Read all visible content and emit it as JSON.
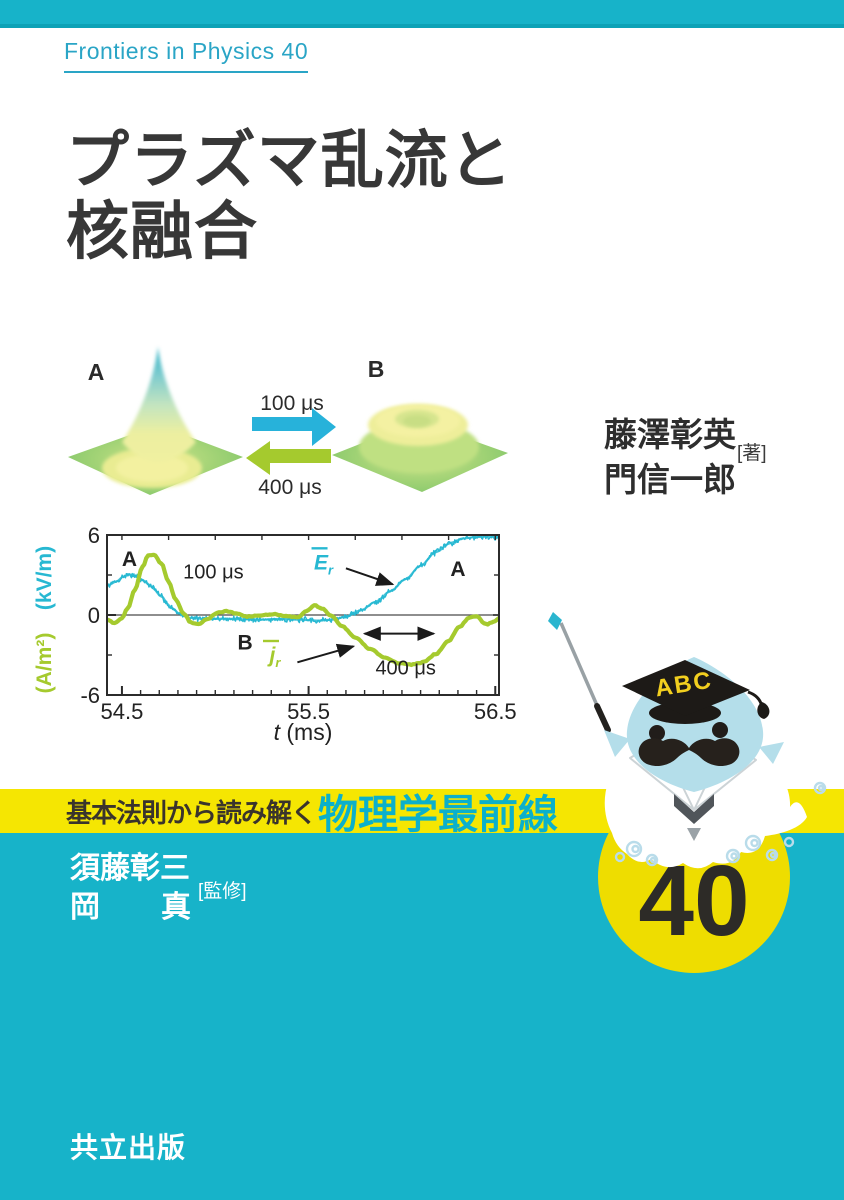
{
  "cover": {
    "series_label": "Frontiers in Physics 40",
    "title_line1": "プラズマ乱流と",
    "title_line2": "核融合",
    "authors": {
      "name1": "藤澤彰英",
      "name2": "門信一郎",
      "role": "[著]"
    },
    "figure3d": {
      "label_a": "A",
      "label_b": "B",
      "forward_label": "100 μs",
      "backward_label": "400 μs"
    },
    "mascot": {
      "cap_text": "ABC"
    },
    "banner": {
      "prefix": "基本法則から読み解く",
      "series_name": "物理学最前線"
    },
    "supervisors": {
      "name1": "須藤彰三",
      "name2_first": "岡",
      "name2_last": "真",
      "role": "[監修]"
    },
    "volume_number": "40",
    "publisher": "共立出版",
    "colors": {
      "cyan": "#17b3c9",
      "cyan_dark": "#0da2b6",
      "banner_yellow": "#f5e602",
      "badge_yellow": "#eedd00",
      "banner_series_cyan": "#0bb0cb",
      "series_label_cyan": "#2aa5c6",
      "chart_cyan": "#27b8d2",
      "chart_green": "#a5ca2e",
      "title_dark": "#373737"
    }
  },
  "chart_data": {
    "type": "line",
    "title": "",
    "xlabel_italic": "t",
    "xlabel_rest": " (ms)",
    "ylabel_top": "(kV/m)",
    "ylabel_bottom": "(A/m²)",
    "xlim": [
      54.42,
      56.52
    ],
    "ylim": [
      -6,
      6
    ],
    "xticks": [
      54.5,
      55.5,
      56.5
    ],
    "yticks": [
      6,
      0,
      -6
    ],
    "yticks_minor": [
      3,
      -3
    ],
    "grid": false,
    "legend_position": "none",
    "series": [
      {
        "name": "Er (radial electric field, kV/m)",
        "color": "#27b8d2",
        "render": "noisy",
        "noise": 0.27,
        "points": [
          [
            54.42,
            2.2
          ],
          [
            54.47,
            2.5
          ],
          [
            54.51,
            2.9
          ],
          [
            54.54,
            3.05
          ],
          [
            54.58,
            2.85
          ],
          [
            54.62,
            2.55
          ],
          [
            54.66,
            2.1
          ],
          [
            54.71,
            1.4
          ],
          [
            54.76,
            0.6
          ],
          [
            54.81,
            0.1
          ],
          [
            54.86,
            -0.2
          ],
          [
            54.95,
            -0.3
          ],
          [
            55.05,
            -0.28
          ],
          [
            55.15,
            -0.32
          ],
          [
            55.25,
            -0.35
          ],
          [
            55.35,
            -0.3
          ],
          [
            55.45,
            -0.35
          ],
          [
            55.55,
            -0.42
          ],
          [
            55.63,
            -0.35
          ],
          [
            55.7,
            -0.12
          ],
          [
            55.78,
            0.35
          ],
          [
            55.86,
            1.0
          ],
          [
            55.94,
            1.8
          ],
          [
            56.02,
            2.7
          ],
          [
            56.1,
            3.7
          ],
          [
            56.18,
            4.7
          ],
          [
            56.26,
            5.4
          ],
          [
            56.33,
            5.75
          ],
          [
            56.4,
            5.85
          ],
          [
            56.47,
            5.9
          ],
          [
            56.52,
            5.85
          ]
        ]
      },
      {
        "name": "jr (radial current, A/m²)",
        "color": "#a5ca2e",
        "render": "smooth",
        "noise": 0.05,
        "points": [
          [
            54.42,
            -0.35
          ],
          [
            54.46,
            -0.6
          ],
          [
            54.5,
            -0.25
          ],
          [
            54.53,
            0.5
          ],
          [
            54.57,
            1.9
          ],
          [
            54.61,
            3.6
          ],
          [
            54.64,
            4.45
          ],
          [
            54.67,
            4.55
          ],
          [
            54.71,
            3.9
          ],
          [
            54.75,
            2.5
          ],
          [
            54.79,
            1.1
          ],
          [
            54.83,
            0.1
          ],
          [
            54.87,
            -0.55
          ],
          [
            54.91,
            -0.68
          ],
          [
            54.96,
            -0.3
          ],
          [
            55.01,
            0.18
          ],
          [
            55.06,
            0.3
          ],
          [
            55.11,
            0.12
          ],
          [
            55.17,
            -0.1
          ],
          [
            55.24,
            -0.03
          ],
          [
            55.31,
            0.05
          ],
          [
            55.38,
            -0.08
          ],
          [
            55.44,
            -0.15
          ],
          [
            55.49,
            0.3
          ],
          [
            55.53,
            0.72
          ],
          [
            55.57,
            0.5
          ],
          [
            55.62,
            -0.05
          ],
          [
            55.68,
            -0.85
          ],
          [
            55.75,
            -1.7
          ],
          [
            55.83,
            -2.55
          ],
          [
            55.91,
            -3.2
          ],
          [
            55.98,
            -3.6
          ],
          [
            56.05,
            -3.72
          ],
          [
            56.11,
            -3.55
          ],
          [
            56.18,
            -2.95
          ],
          [
            56.25,
            -1.95
          ],
          [
            56.31,
            -0.85
          ],
          [
            56.36,
            -0.22
          ],
          [
            56.4,
            -0.12
          ],
          [
            56.45,
            -0.7
          ],
          [
            56.5,
            -0.45
          ],
          [
            56.52,
            -0.2
          ]
        ]
      }
    ],
    "annotations": [
      {
        "id": "a-left",
        "text": "A",
        "x": 54.54,
        "y": 4.2,
        "color": "#222222",
        "bold": true,
        "size": 21
      },
      {
        "id": "label-100us",
        "text": "100 μs",
        "x": 54.99,
        "y": 3.25,
        "color": "#222222",
        "bold": false,
        "size": 20
      },
      {
        "id": "b-mid",
        "text": "B",
        "x": 55.16,
        "y": -2.05,
        "color": "#222222",
        "bold": true,
        "size": 21
      },
      {
        "id": "er-label",
        "text": "E",
        "sub": "r",
        "overline": true,
        "italic": true,
        "x": 55.58,
        "y": 3.95,
        "color": "#27b8d2",
        "bold": true,
        "size": 21
      },
      {
        "id": "jr-label",
        "text": "j",
        "sub": "r",
        "overline": true,
        "italic": true,
        "x": 55.32,
        "y": -3.0,
        "color": "#a5ca2e",
        "bold": true,
        "size": 21
      },
      {
        "id": "label-400us",
        "text": "400 μs",
        "x": 56.02,
        "y": -3.95,
        "color": "#222222",
        "bold": false,
        "size": 20
      },
      {
        "id": "a-right",
        "text": "A",
        "x": 56.3,
        "y": 3.45,
        "color": "#222222",
        "bold": true,
        "size": 21
      }
    ],
    "arrows": [
      {
        "x1": 55.7,
        "y1": 3.5,
        "x2": 55.95,
        "y2": 2.3,
        "double": false
      },
      {
        "x1": 55.44,
        "y1": -3.55,
        "x2": 55.74,
        "y2": -2.35,
        "double": false
      },
      {
        "x1": 55.8,
        "y1": -1.4,
        "x2": 56.17,
        "y2": -1.4,
        "double": true
      }
    ]
  }
}
